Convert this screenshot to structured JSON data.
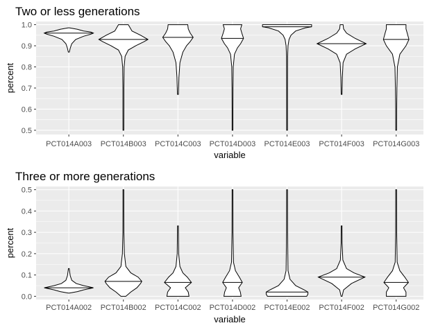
{
  "chart_data": [
    {
      "type": "violin",
      "title": "Two or less generations",
      "xlabel": "variable",
      "ylabel": "percent",
      "ylim": [
        0.48,
        1.015
      ],
      "yticks": [
        0.5,
        0.6,
        0.7,
        0.8,
        0.9,
        1.0
      ],
      "yticklabels": [
        "0.5",
        "0.6",
        "0.7",
        "0.8",
        "0.9",
        "1.0"
      ],
      "grid": true,
      "categories": [
        "PCT014A003",
        "PCT014B003",
        "PCT014C003",
        "PCT014D003",
        "PCT014E003",
        "PCT014F003",
        "PCT014G003"
      ],
      "series": [
        {
          "min": 0.87,
          "max": 0.985,
          "median": 0.96,
          "profile": [
            [
              0.87,
              0.02
            ],
            [
              0.89,
              0.06
            ],
            [
              0.91,
              0.12
            ],
            [
              0.93,
              0.28
            ],
            [
              0.945,
              0.6
            ],
            [
              0.955,
              0.9
            ],
            [
              0.96,
              1.0
            ],
            [
              0.965,
              0.9
            ],
            [
              0.97,
              0.6
            ],
            [
              0.978,
              0.35
            ],
            [
              0.985,
              0.0
            ]
          ]
        },
        {
          "min": 0.5,
          "max": 1.0,
          "median": 0.93,
          "profile": [
            [
              0.5,
              0.015
            ],
            [
              0.6,
              0.02
            ],
            [
              0.7,
              0.02
            ],
            [
              0.8,
              0.03
            ],
            [
              0.85,
              0.07
            ],
            [
              0.88,
              0.2
            ],
            [
              0.9,
              0.5
            ],
            [
              0.92,
              0.85
            ],
            [
              0.93,
              1.0
            ],
            [
              0.95,
              0.7
            ],
            [
              0.97,
              0.35
            ],
            [
              0.99,
              0.25
            ],
            [
              1.0,
              0.2
            ]
          ]
        },
        {
          "min": 0.67,
          "max": 1.0,
          "median": 0.94,
          "profile": [
            [
              0.67,
              0.02
            ],
            [
              0.75,
              0.04
            ],
            [
              0.82,
              0.08
            ],
            [
              0.87,
              0.2
            ],
            [
              0.9,
              0.35
            ],
            [
              0.92,
              0.5
            ],
            [
              0.94,
              0.62
            ],
            [
              0.96,
              0.5
            ],
            [
              0.98,
              0.42
            ],
            [
              1.0,
              0.4
            ]
          ]
        },
        {
          "min": 0.5,
          "max": 1.0,
          "median": 0.935,
          "profile": [
            [
              0.5,
              0.015
            ],
            [
              0.6,
              0.015
            ],
            [
              0.7,
              0.02
            ],
            [
              0.8,
              0.03
            ],
            [
              0.86,
              0.08
            ],
            [
              0.89,
              0.2
            ],
            [
              0.91,
              0.33
            ],
            [
              0.935,
              0.45
            ],
            [
              0.96,
              0.38
            ],
            [
              0.98,
              0.33
            ],
            [
              1.0,
              0.38
            ]
          ]
        },
        {
          "min": 0.5,
          "max": 1.0,
          "median": 0.99,
          "profile": [
            [
              0.5,
              0.01
            ],
            [
              0.7,
              0.015
            ],
            [
              0.85,
              0.02
            ],
            [
              0.9,
              0.04
            ],
            [
              0.93,
              0.08
            ],
            [
              0.95,
              0.16
            ],
            [
              0.97,
              0.35
            ],
            [
              0.985,
              0.75
            ],
            [
              0.99,
              1.0
            ],
            [
              1.0,
              1.0
            ]
          ]
        },
        {
          "min": 0.67,
          "max": 1.0,
          "median": 0.91,
          "profile": [
            [
              0.67,
              0.015
            ],
            [
              0.75,
              0.03
            ],
            [
              0.82,
              0.06
            ],
            [
              0.86,
              0.2
            ],
            [
              0.885,
              0.55
            ],
            [
              0.91,
              1.0
            ],
            [
              0.935,
              0.55
            ],
            [
              0.96,
              0.2
            ],
            [
              0.98,
              0.08
            ],
            [
              1.0,
              0.06
            ]
          ]
        },
        {
          "min": 0.5,
          "max": 1.0,
          "median": 0.93,
          "profile": [
            [
              0.5,
              0.015
            ],
            [
              0.6,
              0.02
            ],
            [
              0.7,
              0.03
            ],
            [
              0.8,
              0.05
            ],
            [
              0.86,
              0.15
            ],
            [
              0.9,
              0.4
            ],
            [
              0.93,
              0.52
            ],
            [
              0.96,
              0.45
            ],
            [
              0.98,
              0.4
            ],
            [
              1.0,
              0.4
            ]
          ]
        }
      ]
    },
    {
      "type": "violin",
      "title": "Three or more generations",
      "xlabel": "variable",
      "ylabel": "percent",
      "ylim": [
        -0.015,
        0.515
      ],
      "yticks": [
        0.0,
        0.1,
        0.2,
        0.3,
        0.4,
        0.5
      ],
      "yticklabels": [
        "0.0",
        "0.1",
        "0.2",
        "0.3",
        "0.4",
        "0.5"
      ],
      "grid": true,
      "categories": [
        "PCT014A002",
        "PCT014B002",
        "PCT014C002",
        "PCT014D002",
        "PCT014E002",
        "PCT014F002",
        "PCT014G002"
      ],
      "series": [
        {
          "min": 0.015,
          "max": 0.13,
          "median": 0.04,
          "profile": [
            [
              0.015,
              0.0
            ],
            [
              0.022,
              0.35
            ],
            [
              0.03,
              0.6
            ],
            [
              0.04,
              1.0
            ],
            [
              0.05,
              0.6
            ],
            [
              0.06,
              0.3
            ],
            [
              0.075,
              0.12
            ],
            [
              0.095,
              0.06
            ],
            [
              0.11,
              0.04
            ],
            [
              0.13,
              0.01
            ]
          ]
        },
        {
          "min": 0.0,
          "max": 0.5,
          "median": 0.07,
          "profile": [
            [
              0.0,
              0.1
            ],
            [
              0.02,
              0.3
            ],
            [
              0.04,
              0.55
            ],
            [
              0.06,
              0.7
            ],
            [
              0.07,
              0.75
            ],
            [
              0.09,
              0.6
            ],
            [
              0.11,
              0.3
            ],
            [
              0.14,
              0.1
            ],
            [
              0.2,
              0.04
            ],
            [
              0.3,
              0.02
            ],
            [
              0.4,
              0.015
            ],
            [
              0.5,
              0.01
            ]
          ]
        },
        {
          "min": 0.0,
          "max": 0.33,
          "median": 0.065,
          "profile": [
            [
              0.0,
              0.45
            ],
            [
              0.02,
              0.42
            ],
            [
              0.04,
              0.3
            ],
            [
              0.065,
              0.55
            ],
            [
              0.09,
              0.38
            ],
            [
              0.11,
              0.2
            ],
            [
              0.14,
              0.08
            ],
            [
              0.2,
              0.03
            ],
            [
              0.33,
              0.01
            ]
          ]
        },
        {
          "min": 0.0,
          "max": 0.5,
          "median": 0.065,
          "profile": [
            [
              0.0,
              0.35
            ],
            [
              0.02,
              0.32
            ],
            [
              0.04,
              0.25
            ],
            [
              0.065,
              0.4
            ],
            [
              0.09,
              0.28
            ],
            [
              0.12,
              0.12
            ],
            [
              0.16,
              0.04
            ],
            [
              0.3,
              0.02
            ],
            [
              0.5,
              0.015
            ]
          ]
        },
        {
          "min": 0.0,
          "max": 0.5,
          "median": 0.02,
          "profile": [
            [
              0.0,
              0.8
            ],
            [
              0.01,
              0.85
            ],
            [
              0.02,
              0.85
            ],
            [
              0.03,
              0.7
            ],
            [
              0.05,
              0.35
            ],
            [
              0.08,
              0.12
            ],
            [
              0.12,
              0.04
            ],
            [
              0.3,
              0.02
            ],
            [
              0.5,
              0.015
            ]
          ]
        },
        {
          "min": 0.0,
          "max": 0.33,
          "median": 0.09,
          "profile": [
            [
              0.0,
              0.02
            ],
            [
              0.03,
              0.08
            ],
            [
              0.06,
              0.4
            ],
            [
              0.09,
              0.95
            ],
            [
              0.11,
              0.5
            ],
            [
              0.13,
              0.2
            ],
            [
              0.17,
              0.05
            ],
            [
              0.25,
              0.02
            ],
            [
              0.33,
              0.01
            ]
          ]
        },
        {
          "min": 0.0,
          "max": 0.5,
          "median": 0.065,
          "profile": [
            [
              0.0,
              0.4
            ],
            [
              0.02,
              0.4
            ],
            [
              0.04,
              0.3
            ],
            [
              0.065,
              0.5
            ],
            [
              0.09,
              0.35
            ],
            [
              0.12,
              0.15
            ],
            [
              0.16,
              0.04
            ],
            [
              0.3,
              0.02
            ],
            [
              0.5,
              0.015
            ]
          ]
        }
      ]
    }
  ]
}
